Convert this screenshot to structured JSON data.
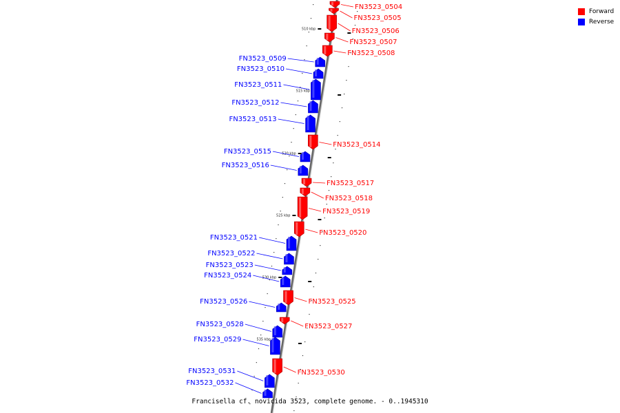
{
  "caption": "Francisella cf. novicida 3523, complete genome. - 0..1945310",
  "legend": {
    "forward_label": "Forward",
    "forward_color": "#ff0000",
    "reverse_label": "Reverse",
    "reverse_color": "#0000ff"
  },
  "scale_labels": [
    "510 kbp",
    "515 kbp",
    "520 kbp",
    "525 kbp",
    "530 kbp",
    "535 kbp"
  ],
  "genes": [
    {
      "name": "FN3523_0504",
      "strand": "forward"
    },
    {
      "name": "FN3523_0505",
      "strand": "forward"
    },
    {
      "name": "FN3523_0506",
      "strand": "forward"
    },
    {
      "name": "FN3523_0507",
      "strand": "forward"
    },
    {
      "name": "FN3523_0508",
      "strand": "forward"
    },
    {
      "name": "FN3523_0509",
      "strand": "reverse"
    },
    {
      "name": "FN3523_0510",
      "strand": "reverse"
    },
    {
      "name": "FN3523_0511",
      "strand": "reverse"
    },
    {
      "name": "FN3523_0512",
      "strand": "reverse"
    },
    {
      "name": "FN3523_0513",
      "strand": "reverse"
    },
    {
      "name": "FN3523_0514",
      "strand": "forward"
    },
    {
      "name": "FN3523_0515",
      "strand": "reverse"
    },
    {
      "name": "FN3523_0516",
      "strand": "reverse"
    },
    {
      "name": "FN3523_0517",
      "strand": "forward"
    },
    {
      "name": "FN3523_0518",
      "strand": "forward"
    },
    {
      "name": "FN3523_0519",
      "strand": "forward"
    },
    {
      "name": "FN3523_0520",
      "strand": "forward"
    },
    {
      "name": "FN3523_0521",
      "strand": "reverse"
    },
    {
      "name": "FN3523_0522",
      "strand": "reverse"
    },
    {
      "name": "FN3523_0523",
      "strand": "reverse"
    },
    {
      "name": "FN3523_0524",
      "strand": "reverse"
    },
    {
      "name": "FN3523_0525",
      "strand": "forward"
    },
    {
      "name": "FN3523_0526",
      "strand": "reverse"
    },
    {
      "name": "FN3523_0527",
      "strand": "forward"
    },
    {
      "name": "FN3523_0528",
      "strand": "reverse"
    },
    {
      "name": "FN3523_0529",
      "strand": "reverse"
    },
    {
      "name": "FN3523_0530",
      "strand": "forward"
    },
    {
      "name": "FN3523_0531",
      "strand": "reverse"
    },
    {
      "name": "FN3523_0532",
      "strand": "reverse"
    }
  ]
}
